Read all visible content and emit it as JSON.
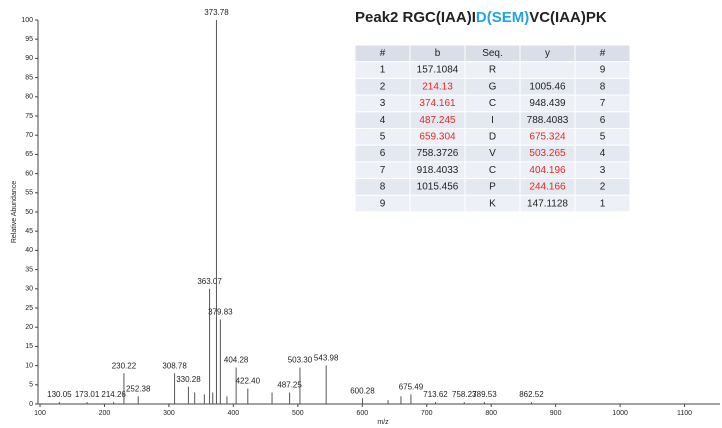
{
  "chart_data": {
    "type": "spectrum",
    "title_parts": [
      "Peak2 RGC(IAA)I",
      "D(SEM)",
      "VC(IAA)PK"
    ],
    "title_highlight_index": 1,
    "title_highlight_color": "#1fa6e0",
    "xlabel": "m/z",
    "ylabel": "Relative Abundance",
    "x": [
      130.05,
      173.01,
      214.26,
      230.22,
      252.38,
      308.78,
      330.28,
      340,
      355,
      363.07,
      368,
      373.78,
      379.83,
      390,
      404.28,
      422.4,
      460,
      487.25,
      503.3,
      543.98,
      600.28,
      640,
      660,
      675.49,
      713.62,
      758.23,
      789.53,
      862.52
    ],
    "x_labels": [
      "130.05",
      "173.01",
      "214.26",
      "230.22",
      "252.38",
      "308.78",
      "330.28",
      null,
      null,
      "363.07",
      null,
      "373.78",
      "379.83",
      null,
      "404.28",
      "422.40",
      null,
      "487.25",
      "503.30",
      "543.98",
      "600.28",
      null,
      null,
      "675.49",
      "713.62",
      "758.23",
      "789.53",
      "862.52"
    ],
    "values": [
      0.5,
      0.5,
      0.5,
      8,
      2,
      8,
      4.5,
      3,
      2.5,
      30,
      3,
      100,
      22,
      2,
      9.5,
      4,
      3,
      3,
      9.5,
      10,
      1.5,
      1,
      2,
      2.5,
      0.5,
      0.5,
      0.5,
      0.5
    ],
    "color": "#555555",
    "xlim": [
      100,
      1155
    ],
    "xticks": [
      100,
      200,
      300,
      400,
      500,
      600,
      700,
      800,
      900,
      1000,
      1100
    ],
    "ylim": [
      0,
      100
    ],
    "yticks": [
      0,
      5,
      10,
      15,
      20,
      25,
      30,
      35,
      40,
      45,
      50,
      55,
      60,
      65,
      70,
      75,
      80,
      85,
      90,
      95,
      100
    ],
    "table": {
      "header": [
        "#",
        "b",
        "Seq.",
        "y",
        "#"
      ],
      "rows": [
        [
          "1",
          "157.1084",
          "R",
          "",
          "9"
        ],
        [
          "2",
          "214.13",
          "G",
          "1005.46",
          "8"
        ],
        [
          "3",
          "374.161",
          "C",
          "948.439",
          "7"
        ],
        [
          "4",
          "487.245",
          "I",
          "788.4083",
          "6"
        ],
        [
          "5",
          "659.304",
          "D",
          "675.324",
          "5"
        ],
        [
          "6",
          "758.3726",
          "V",
          "503.265",
          "4"
        ],
        [
          "7",
          "918.4033",
          "C",
          "404.196",
          "3"
        ],
        [
          "8",
          "1015.456",
          "P",
          "244.166",
          "2"
        ],
        [
          "9",
          "",
          "K",
          "147.1128",
          "1"
        ]
      ],
      "red_cells": [
        [
          1,
          1
        ],
        [
          2,
          1
        ],
        [
          3,
          1
        ],
        [
          4,
          1
        ],
        [
          4,
          3
        ],
        [
          5,
          3
        ],
        [
          6,
          3
        ],
        [
          7,
          3
        ]
      ],
      "red_color": "#e8281e"
    }
  }
}
